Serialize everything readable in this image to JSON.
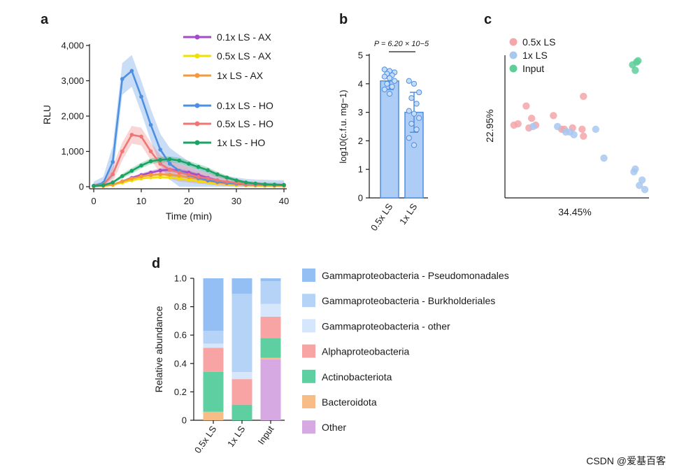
{
  "watermark": "CSDN @爱基百客",
  "chart_data": [
    {
      "panel": "a",
      "type": "line",
      "xlabel": "Time (min)",
      "ylabel": "RLU",
      "xlim": [
        0,
        40
      ],
      "ylim": [
        0,
        4000
      ],
      "xticks": [
        "0",
        "10",
        "20",
        "30",
        "40"
      ],
      "yticks": [
        "0",
        "1,000",
        "2,000",
        "3,000",
        "4,000"
      ],
      "x": [
        0,
        2,
        4,
        6,
        8,
        10,
        12,
        14,
        16,
        18,
        20,
        22,
        24,
        26,
        28,
        30,
        32,
        34,
        36,
        38,
        40
      ],
      "legend_position": "top-right",
      "series": [
        {
          "name": "0.1x LS - AX",
          "color": "#a54bc8",
          "values": [
            20,
            30,
            60,
            150,
            250,
            330,
            400,
            460,
            480,
            450,
            400,
            330,
            250,
            180,
            130,
            90,
            60,
            45,
            35,
            30,
            25
          ],
          "band": 60
        },
        {
          "name": "0.5x LS - AX",
          "color": "#f0e000",
          "values": [
            10,
            20,
            50,
            120,
            180,
            230,
            260,
            270,
            260,
            230,
            200,
            160,
            120,
            90,
            70,
            50,
            40,
            30,
            25,
            20,
            20
          ],
          "band": 40
        },
        {
          "name": "1x LS - AX",
          "color": "#f59a3c",
          "values": [
            10,
            20,
            60,
            150,
            230,
            290,
            330,
            350,
            340,
            310,
            270,
            220,
            170,
            120,
            90,
            70,
            50,
            40,
            35,
            30,
            25
          ],
          "band": 50
        },
        {
          "name": "0.1x LS - HO",
          "color": "#4d8fe0",
          "values": [
            30,
            100,
            700,
            3050,
            3280,
            2550,
            1750,
            1050,
            650,
            450,
            330,
            250,
            180,
            140,
            110,
            90,
            70,
            60,
            55,
            50,
            50
          ],
          "band": 450
        },
        {
          "name": "0.5x LS - HO",
          "color": "#f07575",
          "values": [
            20,
            60,
            350,
            1000,
            1470,
            1420,
            1000,
            650,
            480,
            400,
            340,
            280,
            230,
            180,
            140,
            110,
            80,
            60,
            50,
            45,
            40
          ],
          "band": 250
        },
        {
          "name": "1x LS - HO",
          "color": "#19a463",
          "values": [
            20,
            40,
            120,
            300,
            450,
            600,
            720,
            760,
            780,
            740,
            650,
            560,
            470,
            350,
            260,
            180,
            120,
            90,
            70,
            60,
            50
          ],
          "band": 80
        }
      ]
    },
    {
      "panel": "b",
      "type": "bar",
      "ylabel": "log10(c.f.u. mg−1)",
      "ylim": [
        0,
        5
      ],
      "yticks": [
        "0",
        "1",
        "2",
        "3",
        "4",
        "5"
      ],
      "categories": [
        "0.5x LS",
        "1x LS"
      ],
      "values": [
        4.1,
        3.0
      ],
      "errors": [
        0.3,
        0.7
      ],
      "points": [
        [
          4.5,
          4.45,
          4.4,
          4.35,
          4.3,
          4.25,
          4.2,
          4.1,
          4.0,
          3.9,
          3.8,
          3.65
        ],
        [
          4.1,
          4.0,
          3.7,
          3.5,
          3.3,
          3.05,
          2.95,
          2.8,
          2.6,
          2.4,
          2.1,
          1.85
        ]
      ],
      "annotation": "P = 6.20 × 10−5",
      "bar_color": "#aecdf6",
      "edge_color": "#4d8fe0"
    },
    {
      "panel": "c",
      "type": "scatter",
      "xlabel": "34.45%",
      "ylabel": "22.95%",
      "xlim": [
        0,
        100
      ],
      "ylim": [
        0,
        100
      ],
      "legend_position": "top-left",
      "series": [
        {
          "name": "0.5x LS",
          "color": "#f4a6a9",
          "points": [
            [
              4,
              50
            ],
            [
              7,
              51
            ],
            [
              13,
              64
            ],
            [
              15,
              48
            ],
            [
              17,
              55
            ],
            [
              20,
              50
            ],
            [
              33,
              57
            ],
            [
              39,
              47
            ],
            [
              54,
              47
            ],
            [
              55,
              71
            ],
            [
              55,
              42
            ],
            [
              41,
              47
            ],
            [
              47,
              48
            ]
          ]
        },
        {
          "name": "1x LS",
          "color": "#a8c8f0",
          "points": [
            [
              18,
              49
            ],
            [
              36,
              49
            ],
            [
              42,
              45
            ],
            [
              45,
              45
            ],
            [
              48,
              43
            ],
            [
              64,
              47
            ],
            [
              70,
              26
            ],
            [
              93,
              18
            ],
            [
              92,
              16
            ],
            [
              98,
              10
            ],
            [
              96,
              6
            ],
            [
              100,
              3
            ]
          ]
        },
        {
          "name": "Input",
          "color": "#5fcf9a",
          "points": [
            [
              91,
              94
            ],
            [
              94,
              96
            ],
            [
              95,
              97
            ],
            [
              93,
              90
            ]
          ]
        }
      ]
    },
    {
      "panel": "d",
      "type": "bar",
      "stacked": true,
      "ylabel": "Relative abundance",
      "ylim": [
        0,
        1.0
      ],
      "yticks": [
        "0",
        "0.2",
        "0.4",
        "0.6",
        "0.8",
        "1.0"
      ],
      "categories": [
        "0.5x LS",
        "1x LS",
        "Input"
      ],
      "series": [
        {
          "name": "Other",
          "color": "#d7a9e3",
          "values": [
            0.0,
            0.0,
            0.43
          ]
        },
        {
          "name": "Bacteroidota",
          "color": "#f8bd86",
          "values": [
            0.06,
            0.0,
            0.01
          ]
        },
        {
          "name": "Actinobacteriota",
          "color": "#5dcfa0",
          "values": [
            0.28,
            0.11,
            0.14
          ]
        },
        {
          "name": "Alphaproteobacteria",
          "color": "#f8a4a4",
          "values": [
            0.17,
            0.18,
            0.15
          ]
        },
        {
          "name": "Gammaproteobacteria - other",
          "color": "#d6e6fb",
          "values": [
            0.03,
            0.05,
            0.09
          ]
        },
        {
          "name": "Gammaproteobacteria - Burkholderiales",
          "color": "#b4d3f7",
          "values": [
            0.09,
            0.55,
            0.16
          ]
        },
        {
          "name": "Gammaproteobacteria - Pseudomonadales",
          "color": "#93bff4",
          "values": [
            0.37,
            0.11,
            0.02
          ]
        }
      ],
      "legend_order": [
        "Gammaproteobacteria - Pseudomonadales",
        "Gammaproteobacteria - Burkholderiales",
        "Gammaproteobacteria - other",
        "Alphaproteobacteria",
        "Actinobacteriota",
        "Bacteroidota",
        "Other"
      ]
    }
  ]
}
